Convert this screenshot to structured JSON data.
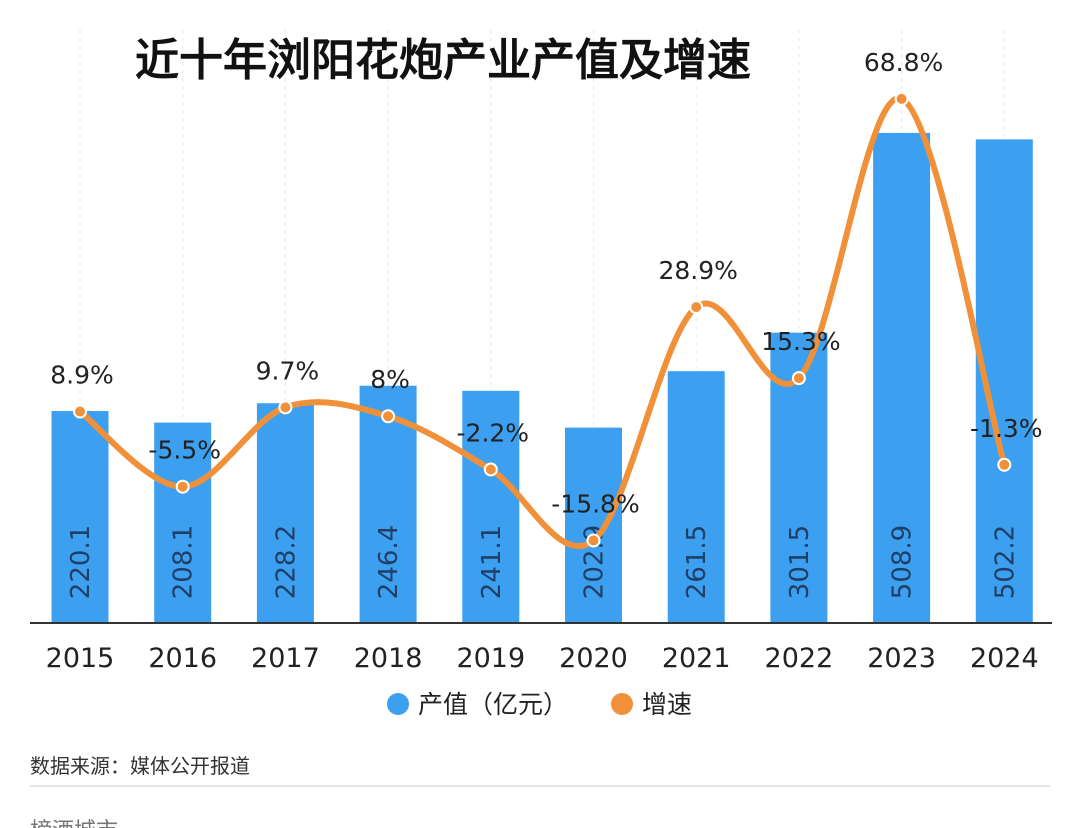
{
  "chart_data": {
    "type": "bar",
    "title": "近十年浏阳花炮产业产值及增速",
    "categories": [
      "2015",
      "2016",
      "2017",
      "2018",
      "2019",
      "2020",
      "2021",
      "2022",
      "2023",
      "2024"
    ],
    "series": [
      {
        "name": "产值（亿元）",
        "type": "bar",
        "color": "#3d9ff0",
        "values": [
          220.1,
          208.1,
          228.2,
          246.4,
          241.1,
          202.9,
          261.5,
          301.5,
          508.9,
          502.2
        ],
        "labels": [
          "220.1",
          "208.1",
          "228.2",
          "246.4",
          "241.1",
          "202.9",
          "261.5",
          "301.5",
          "508.9",
          "502.2"
        ]
      },
      {
        "name": "增速",
        "type": "line",
        "color": "#f0913a",
        "values": [
          8.9,
          -5.5,
          9.7,
          8,
          -2.2,
          -15.8,
          28.9,
          15.3,
          68.8,
          -1.3
        ],
        "labels": [
          "8.9%",
          "-5.5%",
          "9.7%",
          "8%",
          "-2.2%",
          "-15.8%",
          "28.9%",
          "15.3%",
          "68.8%",
          "-1.3%"
        ]
      }
    ],
    "legend": {
      "position": "bottom"
    },
    "grid": false
  },
  "footer": {
    "source": "数据来源：媒体公开报道",
    "cut_text": "榜酒城市"
  }
}
